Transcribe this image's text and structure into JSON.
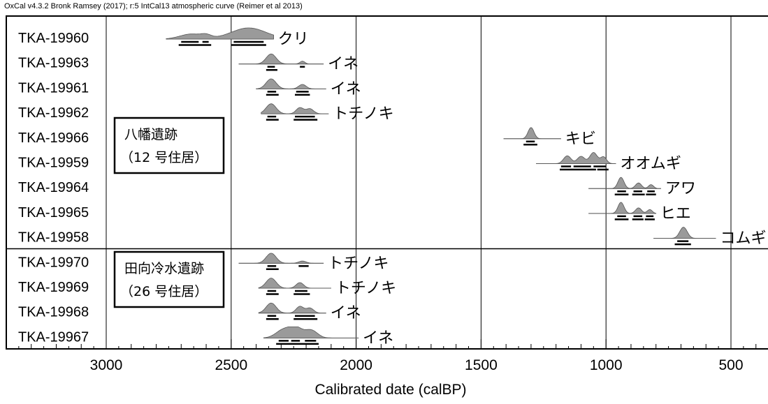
{
  "header": "OxCal v4.3.2 Bronk Ramsey (2017); r:5 IntCal13 atmospheric curve (Reimer et al 2013)",
  "chart_data": {
    "type": "calibrated-date-ranges",
    "xlabel": "Calibrated date (calBP)",
    "xlim": [
      3400,
      310
    ],
    "xticks": [
      3000,
      2500,
      2000,
      1500,
      1000,
      500
    ],
    "grid": true,
    "groups": [
      {
        "line1": "八幡遺跡",
        "line2": "（12 号住居）",
        "rows": [
          0,
          8
        ]
      },
      {
        "line1": "田向冷水遺跡",
        "line2": "（26 号住居）",
        "rows": [
          9,
          12
        ]
      }
    ],
    "samples": [
      {
        "id": "TKA-19960",
        "species": "クリ",
        "prob_range": [
          2760,
          2330
        ],
        "peaks": [
          [
            2660,
            45,
            0.45
          ],
          [
            2600,
            20,
            0.25
          ],
          [
            2430,
            70,
            1.0
          ]
        ],
        "range_1sigma": [
          [
            2700,
            2630
          ],
          [
            2615,
            2590
          ],
          [
            2490,
            2370
          ]
        ],
        "range_2sigma": [
          [
            2710,
            2580
          ],
          [
            2500,
            2360
          ]
        ]
      },
      {
        "id": "TKA-19963",
        "species": "イネ",
        "prob_range": [
          2470,
          2130
        ],
        "peaks": [
          [
            2340,
            20,
            0.9
          ],
          [
            2215,
            10,
            0.25
          ]
        ],
        "range_1sigma": [
          [
            2355,
            2325
          ],
          [
            2225,
            2205
          ]
        ],
        "range_2sigma": [
          [
            2360,
            2315
          ]
        ]
      },
      {
        "id": "TKA-19961",
        "species": "イネ",
        "prob_range": [
          2400,
          2120
        ],
        "peaks": [
          [
            2340,
            20,
            0.9
          ],
          [
            2215,
            15,
            0.4
          ]
        ],
        "range_1sigma": [
          [
            2355,
            2320
          ],
          [
            2240,
            2190
          ]
        ],
        "range_2sigma": [
          [
            2360,
            2310
          ],
          [
            2245,
            2185
          ]
        ]
      },
      {
        "id": "TKA-19962",
        "species": "トチノキ",
        "prob_range": [
          2380,
          2110
        ],
        "peaks": [
          [
            2340,
            20,
            0.9
          ],
          [
            2225,
            15,
            0.55
          ],
          [
            2185,
            15,
            0.45
          ]
        ],
        "range_1sigma": [
          [
            2355,
            2320
          ],
          [
            2245,
            2165
          ]
        ],
        "range_2sigma": [
          [
            2360,
            2310
          ],
          [
            2250,
            2155
          ]
        ]
      },
      {
        "id": "TKA-19966",
        "species": "キビ",
        "prob_range": [
          1410,
          1180
        ],
        "peaks": [
          [
            1300,
            12,
            1.0
          ]
        ],
        "range_1sigma": [
          [
            1320,
            1285
          ]
        ],
        "range_2sigma": [
          [
            1330,
            1275
          ]
        ]
      },
      {
        "id": "TKA-19959",
        "species": "オオムギ",
        "prob_range": [
          1280,
          960
        ],
        "peaks": [
          [
            1155,
            15,
            0.7
          ],
          [
            1100,
            15,
            0.65
          ],
          [
            1050,
            15,
            1.0
          ],
          [
            1010,
            12,
            0.6
          ]
        ],
        "range_1sigma": [
          [
            1180,
            1140
          ],
          [
            1130,
            1060
          ],
          [
            1050,
            1000
          ]
        ],
        "range_2sigma": [
          [
            1185,
            1040
          ],
          [
            1035,
            990
          ]
        ]
      },
      {
        "id": "TKA-19964",
        "species": "アワ",
        "prob_range": [
          1070,
          780
        ],
        "peaks": [
          [
            940,
            12,
            1.0
          ],
          [
            870,
            12,
            0.5
          ],
          [
            820,
            10,
            0.35
          ]
        ],
        "range_1sigma": [
          [
            955,
            920
          ],
          [
            890,
            855
          ],
          [
            835,
            805
          ]
        ],
        "range_2sigma": [
          [
            965,
            910
          ],
          [
            895,
            845
          ],
          [
            840,
            800
          ]
        ]
      },
      {
        "id": "TKA-19965",
        "species": "ヒエ",
        "prob_range": [
          1070,
          800
        ],
        "peaks": [
          [
            940,
            12,
            1.0
          ],
          [
            870,
            12,
            0.5
          ],
          [
            825,
            10,
            0.35
          ]
        ],
        "range_1sigma": [
          [
            955,
            920
          ],
          [
            890,
            855
          ],
          [
            840,
            810
          ]
        ],
        "range_2sigma": [
          [
            965,
            910
          ],
          [
            895,
            850
          ],
          [
            845,
            805
          ]
        ]
      },
      {
        "id": "TKA-19958",
        "species": "コムギ",
        "prob_range": [
          810,
          560
        ],
        "peaks": [
          [
            690,
            15,
            1.0
          ]
        ],
        "range_1sigma": [
          [
            715,
            670
          ]
        ],
        "range_2sigma": [
          [
            725,
            660
          ]
        ]
      },
      {
        "id": "TKA-19970",
        "species": "トチノキ",
        "prob_range": [
          2470,
          2130
        ],
        "peaks": [
          [
            2340,
            20,
            0.9
          ],
          [
            2215,
            15,
            0.2
          ]
        ],
        "range_1sigma": [
          [
            2355,
            2320
          ],
          [
            2230,
            2190
          ]
        ],
        "range_2sigma": [
          [
            2360,
            2310
          ]
        ]
      },
      {
        "id": "TKA-19969",
        "species": "トチノキ",
        "prob_range": [
          2390,
          2100
        ],
        "peaks": [
          [
            2340,
            20,
            0.9
          ],
          [
            2225,
            15,
            0.5
          ]
        ],
        "range_1sigma": [
          [
            2355,
            2320
          ],
          [
            2245,
            2195
          ]
        ],
        "range_2sigma": [
          [
            2360,
            2310
          ],
          [
            2250,
            2185
          ]
        ]
      },
      {
        "id": "TKA-19968",
        "species": "イネ",
        "prob_range": [
          2390,
          2120
        ],
        "peaks": [
          [
            2340,
            20,
            0.9
          ],
          [
            2225,
            15,
            0.6
          ],
          [
            2185,
            15,
            0.45
          ]
        ],
        "range_1sigma": [
          [
            2355,
            2320
          ],
          [
            2245,
            2165
          ]
        ],
        "range_2sigma": [
          [
            2360,
            2310
          ],
          [
            2250,
            2155
          ]
        ]
      },
      {
        "id": "TKA-19967",
        "species": "イネ",
        "prob_range": [
          2370,
          1990
        ],
        "peaks": [
          [
            2290,
            30,
            0.75
          ],
          [
            2240,
            25,
            0.85
          ],
          [
            2180,
            25,
            0.7
          ]
        ],
        "range_1sigma": [
          [
            2310,
            2270
          ],
          [
            2260,
            2225
          ],
          [
            2205,
            2160
          ]
        ],
        "range_2sigma": [
          [
            2320,
            2150
          ]
        ]
      }
    ]
  }
}
